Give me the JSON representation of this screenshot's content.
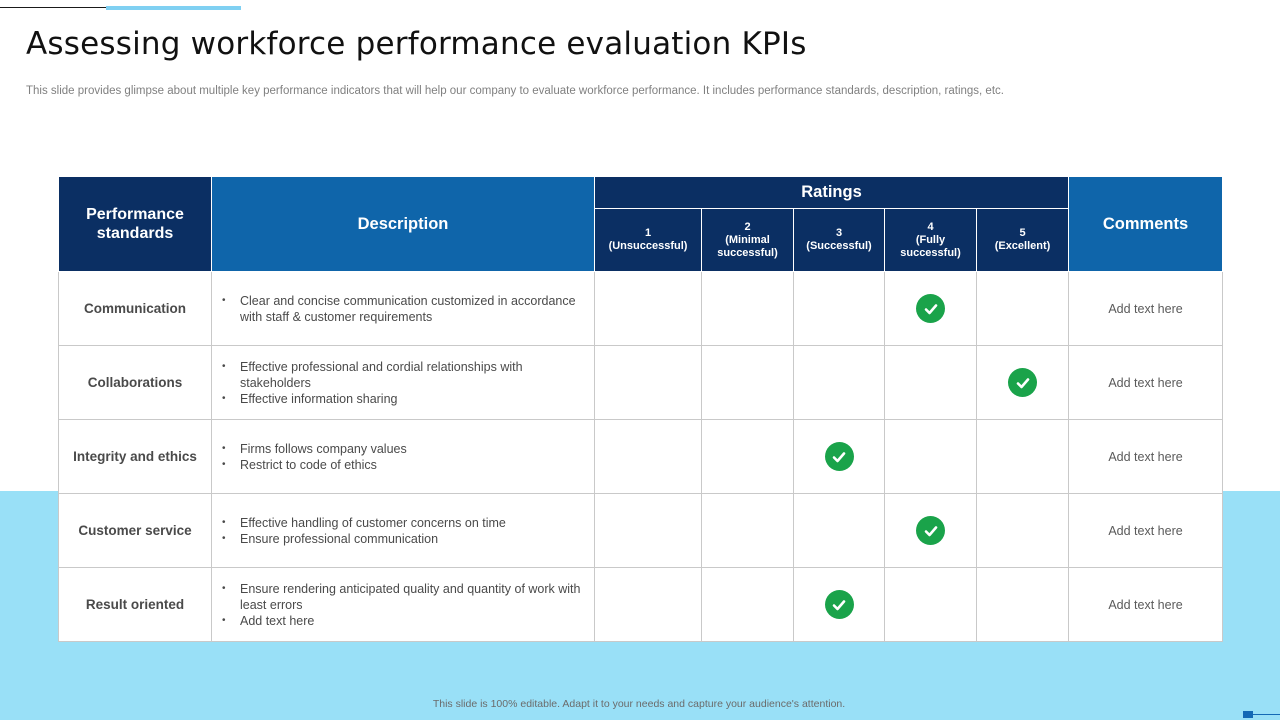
{
  "slide": {
    "title": "Assessing workforce performance evaluation KPIs",
    "subtitle": "This slide provides glimpse about multiple key performance indicators that will help our company to evaluate workforce performance. It includes performance standards, description, ratings, etc.",
    "footer": "This slide is 100% editable.  Adapt it to your needs and capture your audience's attention."
  },
  "colors": {
    "navy": "#0b2f63",
    "blue": "#0f65aa",
    "check": "#1aa34a",
    "band": "#99e0f7"
  },
  "table": {
    "headers": {
      "standards_line1": "Performance",
      "standards_line2": "standards",
      "description": "Description",
      "ratings": "Ratings",
      "comments": "Comments"
    },
    "rating_levels": [
      {
        "num": "1",
        "line1": "(Unsuccessful)",
        "line2": ""
      },
      {
        "num": "2",
        "line1": "(Minimal",
        "line2": "successful)"
      },
      {
        "num": "3",
        "line1": "(Successful)",
        "line2": ""
      },
      {
        "num": "4",
        "line1": "(Fully",
        "line2": "successful)"
      },
      {
        "num": "5",
        "line1": "(Excellent)",
        "line2": ""
      }
    ],
    "rows": [
      {
        "standard": "Communication",
        "bullets": [
          "Clear and concise communication customized in accordance with staff & customer requirements"
        ],
        "rating": 4,
        "comment": "Add text here"
      },
      {
        "standard": "Collaborations",
        "bullets": [
          "Effective professional  and cordial relationships with stakeholders",
          "Effective  information  sharing"
        ],
        "rating": 5,
        "comment": "Add text here"
      },
      {
        "standard": "Integrity and ethics",
        "bullets": [
          "Firms follows company values",
          "Restrict to code  of ethics"
        ],
        "rating": 3,
        "comment": "Add text here"
      },
      {
        "standard": "Customer service",
        "bullets": [
          "Effective handling  of customer concerns on time",
          "Ensure professional  communication"
        ],
        "rating": 4,
        "comment": "Add text here"
      },
      {
        "standard": "Result oriented",
        "bullets": [
          "Ensure rendering  anticipated quality and quantity of work with least errors",
          "Add text here"
        ],
        "rating": 3,
        "comment": "Add text here"
      }
    ],
    "check_icon": "check-circle-icon"
  }
}
